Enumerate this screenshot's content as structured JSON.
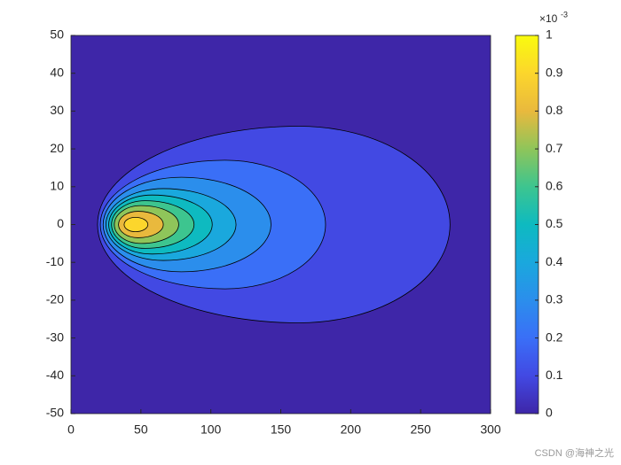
{
  "chart_data": {
    "type": "contourf",
    "xlim": [
      0,
      300
    ],
    "xticks": [
      0,
      50,
      100,
      150,
      200,
      250,
      300
    ],
    "ylim": [
      -50,
      50
    ],
    "yticks": [
      -50,
      -40,
      -30,
      -20,
      -10,
      0,
      10,
      20,
      30,
      40,
      50
    ],
    "background_color": "#3e26a8",
    "contours": [
      {
        "level": 0.1,
        "xmin": 19,
        "xpeak": 163,
        "xmax": 271,
        "halfheight": 26,
        "color": "#4249e3"
      },
      {
        "level": 0.2,
        "xmin": 21,
        "xpeak": 110,
        "xmax": 182,
        "halfheight": 17,
        "color": "#3a6ff7"
      },
      {
        "level": 0.3,
        "xmin": 23,
        "xpeak": 79,
        "xmax": 143,
        "halfheight": 12.5,
        "color": "#2b8eec"
      },
      {
        "level": 0.4,
        "xmin": 25,
        "xpeak": 66,
        "xmax": 118,
        "halfheight": 9.5,
        "color": "#1aa8dd"
      },
      {
        "level": 0.5,
        "xmin": 27,
        "xpeak": 58,
        "xmax": 101,
        "halfheight": 7.8,
        "color": "#0ebac0"
      },
      {
        "level": 0.6,
        "xmin": 29,
        "xpeak": 53,
        "xmax": 88,
        "halfheight": 6.3,
        "color": "#3dc58f"
      },
      {
        "level": 0.7,
        "xmin": 31,
        "xpeak": 50,
        "xmax": 77,
        "halfheight": 5,
        "color": "#8fc55a"
      },
      {
        "level": 0.8,
        "xmin": 34,
        "xpeak": 48,
        "xmax": 66,
        "halfheight": 3.5,
        "color": "#e9b93d"
      },
      {
        "level": 0.9,
        "xmin": 38,
        "xpeak": 46,
        "xmax": 55,
        "halfheight": 1.9,
        "color": "#fcd62c"
      }
    ],
    "colorbar": {
      "clim": [
        0,
        1
      ],
      "ticks": [
        0,
        0.1,
        0.2,
        0.3,
        0.4,
        0.5,
        0.6,
        0.7,
        0.8,
        0.9,
        1
      ],
      "colors": [
        "#3e26a8",
        "#4249e3",
        "#3a6ff7",
        "#2b8eec",
        "#1aa8dd",
        "#0ebac0",
        "#3dc58f",
        "#8fc55a",
        "#e9b93d",
        "#fcd62c",
        "#f9fb0e"
      ],
      "multiplier": {
        "base": "×10",
        "exponent": "-3"
      }
    },
    "watermark": "CSDN @海神之光"
  }
}
